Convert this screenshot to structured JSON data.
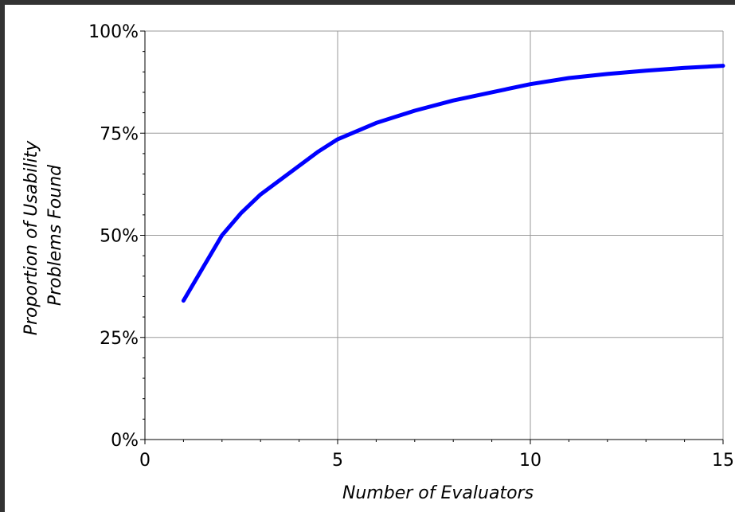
{
  "chart_data": {
    "type": "line",
    "title": "",
    "xlabel": "Number of Evaluators",
    "ylabel_lines": [
      "Proportion of Usability",
      "Problems Found"
    ],
    "xlim": [
      0,
      15
    ],
    "ylim": [
      0,
      100
    ],
    "x_ticks": [
      0,
      5,
      10,
      15
    ],
    "x_tick_labels": [
      "0",
      "5",
      "10",
      "15"
    ],
    "y_ticks": [
      0,
      25,
      50,
      75,
      100
    ],
    "y_tick_labels": [
      "0%",
      "25%",
      "50%",
      "75%",
      "100%"
    ],
    "grid": true,
    "series": [
      {
        "color": "#0000ff",
        "x": [
          1,
          1.5,
          2,
          2.5,
          3,
          3.5,
          4,
          4.5,
          5,
          6,
          7,
          8,
          9,
          10,
          11,
          12,
          13,
          14,
          15
        ],
        "y": [
          34,
          42,
          50,
          55.5,
          60,
          63.5,
          67,
          70.5,
          73.5,
          77.5,
          80.5,
          83,
          85,
          87,
          88.5,
          89.5,
          90.3,
          91,
          91.5
        ]
      }
    ]
  }
}
